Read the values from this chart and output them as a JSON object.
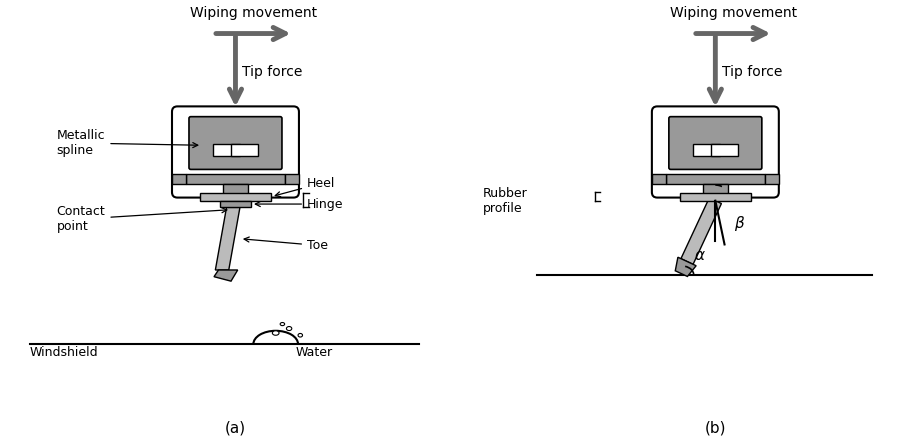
{
  "bg_color": "#ffffff",
  "line_color": "#000000",
  "gray_fill": "#999999",
  "gray_light": "#bbbbbb",
  "gray_arrow": "#666666",
  "title_a": "(a)",
  "title_b": "(b)",
  "label_wiping": "Wiping movement",
  "label_tip": "Tip force",
  "label_metallic": "Metallic\nspline",
  "label_contact": "Contact\npoint",
  "label_windshield": "Windshield",
  "label_heel": "Heel",
  "label_hinge": "Hinge",
  "label_toe": "Toe",
  "label_water": "Water",
  "label_rubber": "Rubber\nprofile",
  "label_alpha": "α",
  "label_beta": "β"
}
